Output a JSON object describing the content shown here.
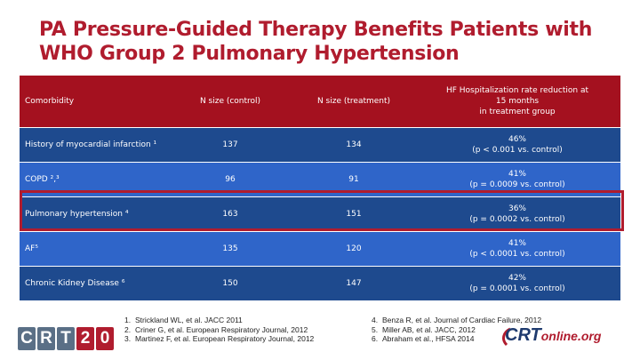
{
  "title": {
    "line1": "PA Pressure-Guided Therapy Benefits Patients with",
    "line2": "WHO Group 2 Pulmonary Hypertension"
  },
  "table": {
    "headers": [
      "Comorbidity",
      "N size (control)",
      "N size (treatment)",
      "HF Hospitalization rate reduction at 15 months in treatment group"
    ],
    "header_last_lines": [
      "HF Hospitalization rate reduction at",
      "15 months",
      "in treatment group"
    ],
    "rows": [
      {
        "comorbidity": "History of myocardial infarction ¹",
        "control": "137",
        "treatment": "134",
        "rate": "46%",
        "p": "(p < 0.001 vs. control)"
      },
      {
        "comorbidity": "COPD ²,³",
        "control": "96",
        "treatment": "91",
        "rate": "41%",
        "p": "(p = 0.0009 vs. control)"
      },
      {
        "comorbidity": "Pulmonary hypertension ⁴",
        "control": "163",
        "treatment": "151",
        "rate": "36%",
        "p": "(p = 0.0002 vs. control)"
      },
      {
        "comorbidity": "AF⁵",
        "control": "135",
        "treatment": "120",
        "rate": "41%",
        "p": "(p < 0.0001 vs. control)"
      },
      {
        "comorbidity": "Chronic Kidney Disease ⁶",
        "control": "150",
        "treatment": "147",
        "rate": "42%",
        "p": "(p = 0.0001 vs. control)"
      }
    ]
  },
  "references": {
    "left": [
      {
        "num": "1.",
        "text": "Strickland WL, et al. JACC 2011"
      },
      {
        "num": "2.",
        "text": "Criner G, et al. European Respiratory Journal, 2012"
      },
      {
        "num": "3.",
        "text": "Martinez F, et al. European Respiratory Journal, 2012"
      }
    ],
    "right": [
      {
        "num": "4.",
        "text": "Benza R, et al. Journal of Cardiac Failure, 2012"
      },
      {
        "num": "5.",
        "text": "Miller AB, et al. JACC, 2012"
      },
      {
        "num": "6.",
        "text": "Abraham et al., HFSA 2014"
      }
    ]
  },
  "logos": {
    "left_letters": [
      "C",
      "R",
      "T",
      "2",
      "0"
    ],
    "right_crt": "CRT",
    "right_online": "online.org"
  },
  "colors": {
    "title": "#b01c2e",
    "header_bg": "#a4111f",
    "row_dark": "#1e4a8e",
    "row_light": "#2f65c9",
    "highlight_border": "#b01c2e"
  }
}
